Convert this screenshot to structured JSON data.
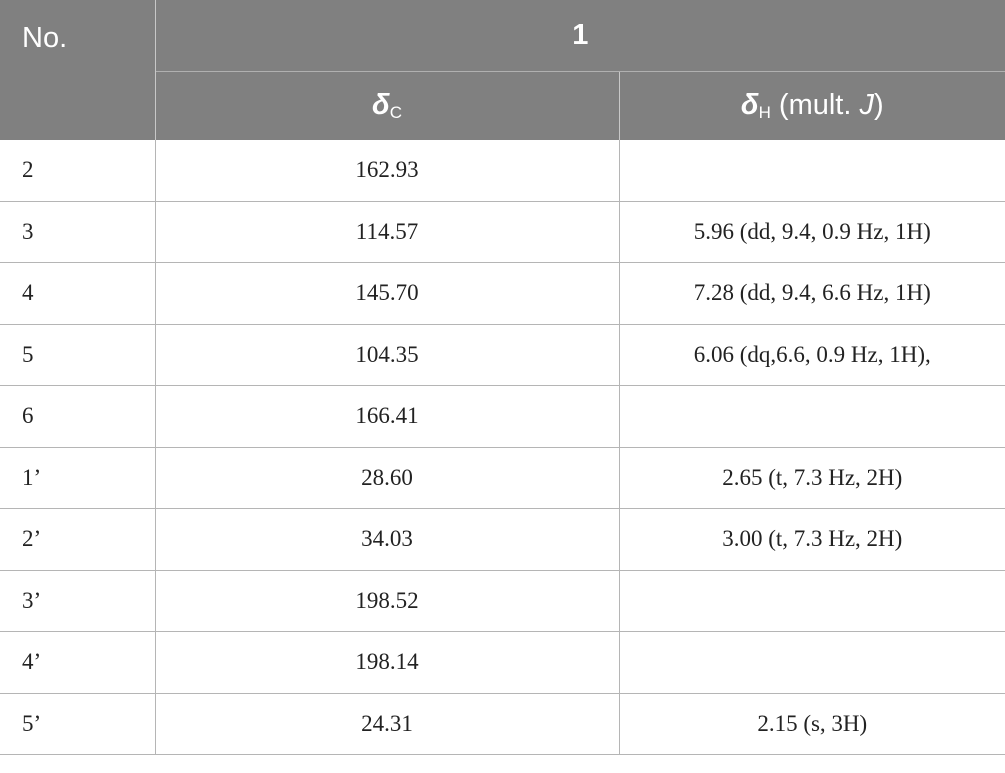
{
  "table": {
    "header": {
      "no": "No.",
      "compound": "1",
      "columns": [
        {
          "symbol": "δ",
          "sub": "C"
        },
        {
          "symbol": "δ",
          "sub": "H",
          "before": "(mult. ",
          "italic": "J",
          "after": ")"
        }
      ]
    },
    "rows": [
      [
        "2",
        "162.93",
        null
      ],
      [
        "3",
        "114.57",
        "5.96 (dd, 9.4, 0.9 Hz, 1H)"
      ],
      [
        "4",
        "145.70",
        "7.28 (dd, 9.4, 6.6 Hz, 1H)"
      ],
      [
        "5",
        "104.35",
        "6.06 (dq,6.6, 0.9 Hz, 1H),"
      ],
      [
        "6",
        "166.41",
        null
      ],
      [
        "1’",
        "28.60",
        "2.65 (t, 7.3 Hz, 2H)"
      ],
      [
        "2’",
        "34.03",
        "3.00 (t, 7.3 Hz, 2H)"
      ],
      [
        "3’",
        "198.52",
        null
      ],
      [
        "4’",
        "198.14",
        null
      ],
      [
        "5’",
        "24.31",
        "2.15 (s, 3H)"
      ]
    ]
  }
}
